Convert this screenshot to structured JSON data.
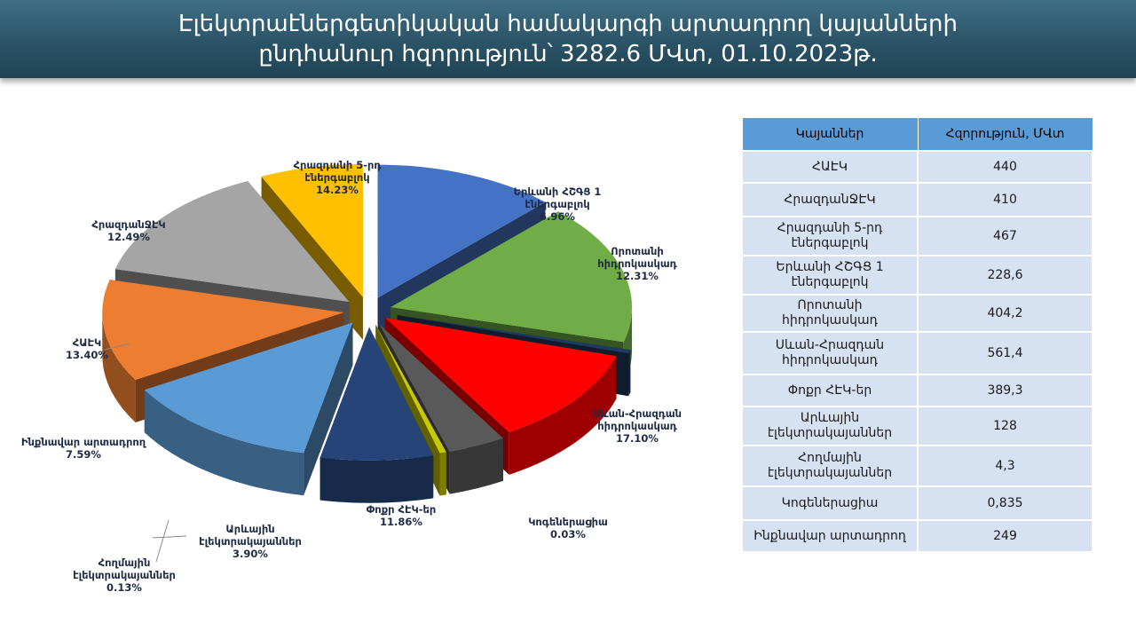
{
  "title": {
    "line1": "Էլեկտրաէներգետիկական համակարգի արտադրող կայանների",
    "line2": "ընդհանուր հզորություն՝ 3282.6 ՄՎտ, 01.10.2023թ."
  },
  "chart_data": {
    "type": "pie",
    "title": "",
    "slices": [
      {
        "label": [
          "Որոտանի",
          "հիդրոկասկադ"
        ],
        "value": 12.31,
        "display": "12.31%",
        "color": "#4472c4"
      },
      {
        "label": [
          "Սևան-Հրազդան",
          "հիդրոկասկադ"
        ],
        "value": 17.1,
        "display": "17.10%",
        "color": "#70ad47"
      },
      {
        "label": [
          "Կոգեներացիա"
        ],
        "value": 0.03,
        "display": "0.03%",
        "color": "#1f3a5f"
      },
      {
        "label": [
          "Փոքր ՀԷԿ-եր"
        ],
        "value": 11.86,
        "display": "11.86%",
        "color": "#ff0000"
      },
      {
        "label": [
          "Արևային",
          "էլեկտրակայաններ"
        ],
        "value": 3.9,
        "display": "3.90%",
        "color": "#595959"
      },
      {
        "label": [
          "Հողմային",
          "էլեկտրակայաններ"
        ],
        "value": 0.13,
        "display": "0.13%",
        "color": "#c9c900"
      },
      {
        "label": [
          "Ինքնավար արտադրող"
        ],
        "value": 7.59,
        "display": "7.59%",
        "color": "#264478"
      },
      {
        "label": [
          "ՀԱԷԿ"
        ],
        "value": 13.4,
        "display": "13.40%",
        "color": "#5b9bd5"
      },
      {
        "label": [
          "ՀրազդանՋԷԿ"
        ],
        "value": 12.49,
        "display": "12.49%",
        "color": "#ed7d31"
      },
      {
        "label": [
          "Հրազդանի 5-րդ",
          "էներգաբլոկ"
        ],
        "value": 14.23,
        "display": "14.23%",
        "color": "#a5a5a5"
      },
      {
        "label": [
          "Երևանի ՀՇԳՑ 1",
          "էներգաբլոկ"
        ],
        "value": 6.96,
        "display": "6.96%",
        "color": "#ffc000"
      }
    ]
  },
  "table": {
    "headers": [
      "Կայաններ",
      "Հզորություն, ՄՎտ"
    ],
    "rows": [
      [
        "ՀԱԷԿ",
        "440"
      ],
      [
        "ՀրազդանՋԷԿ",
        "410"
      ],
      [
        "Հրազդանի 5-րդ էներգաբլոկ",
        "467"
      ],
      [
        "Երևանի ՀՇԳՑ 1 էներգաբլոկ",
        "228,6"
      ],
      [
        "Որոտանի հիդրոկասկադ",
        "404,2"
      ],
      [
        "Սևան-Հրազդան հիդրոկասկադ",
        "561,4"
      ],
      [
        "Փոքր ՀԷԿ-եր",
        "389,3"
      ],
      [
        "Արևային էլեկտրակայաններ",
        "128"
      ],
      [
        "Հողմային էլեկտրակայաններ",
        "4,3"
      ],
      [
        "Կոգեներացիա",
        "0,835"
      ],
      [
        "Ինքնավար արտադրող",
        "249"
      ]
    ]
  }
}
